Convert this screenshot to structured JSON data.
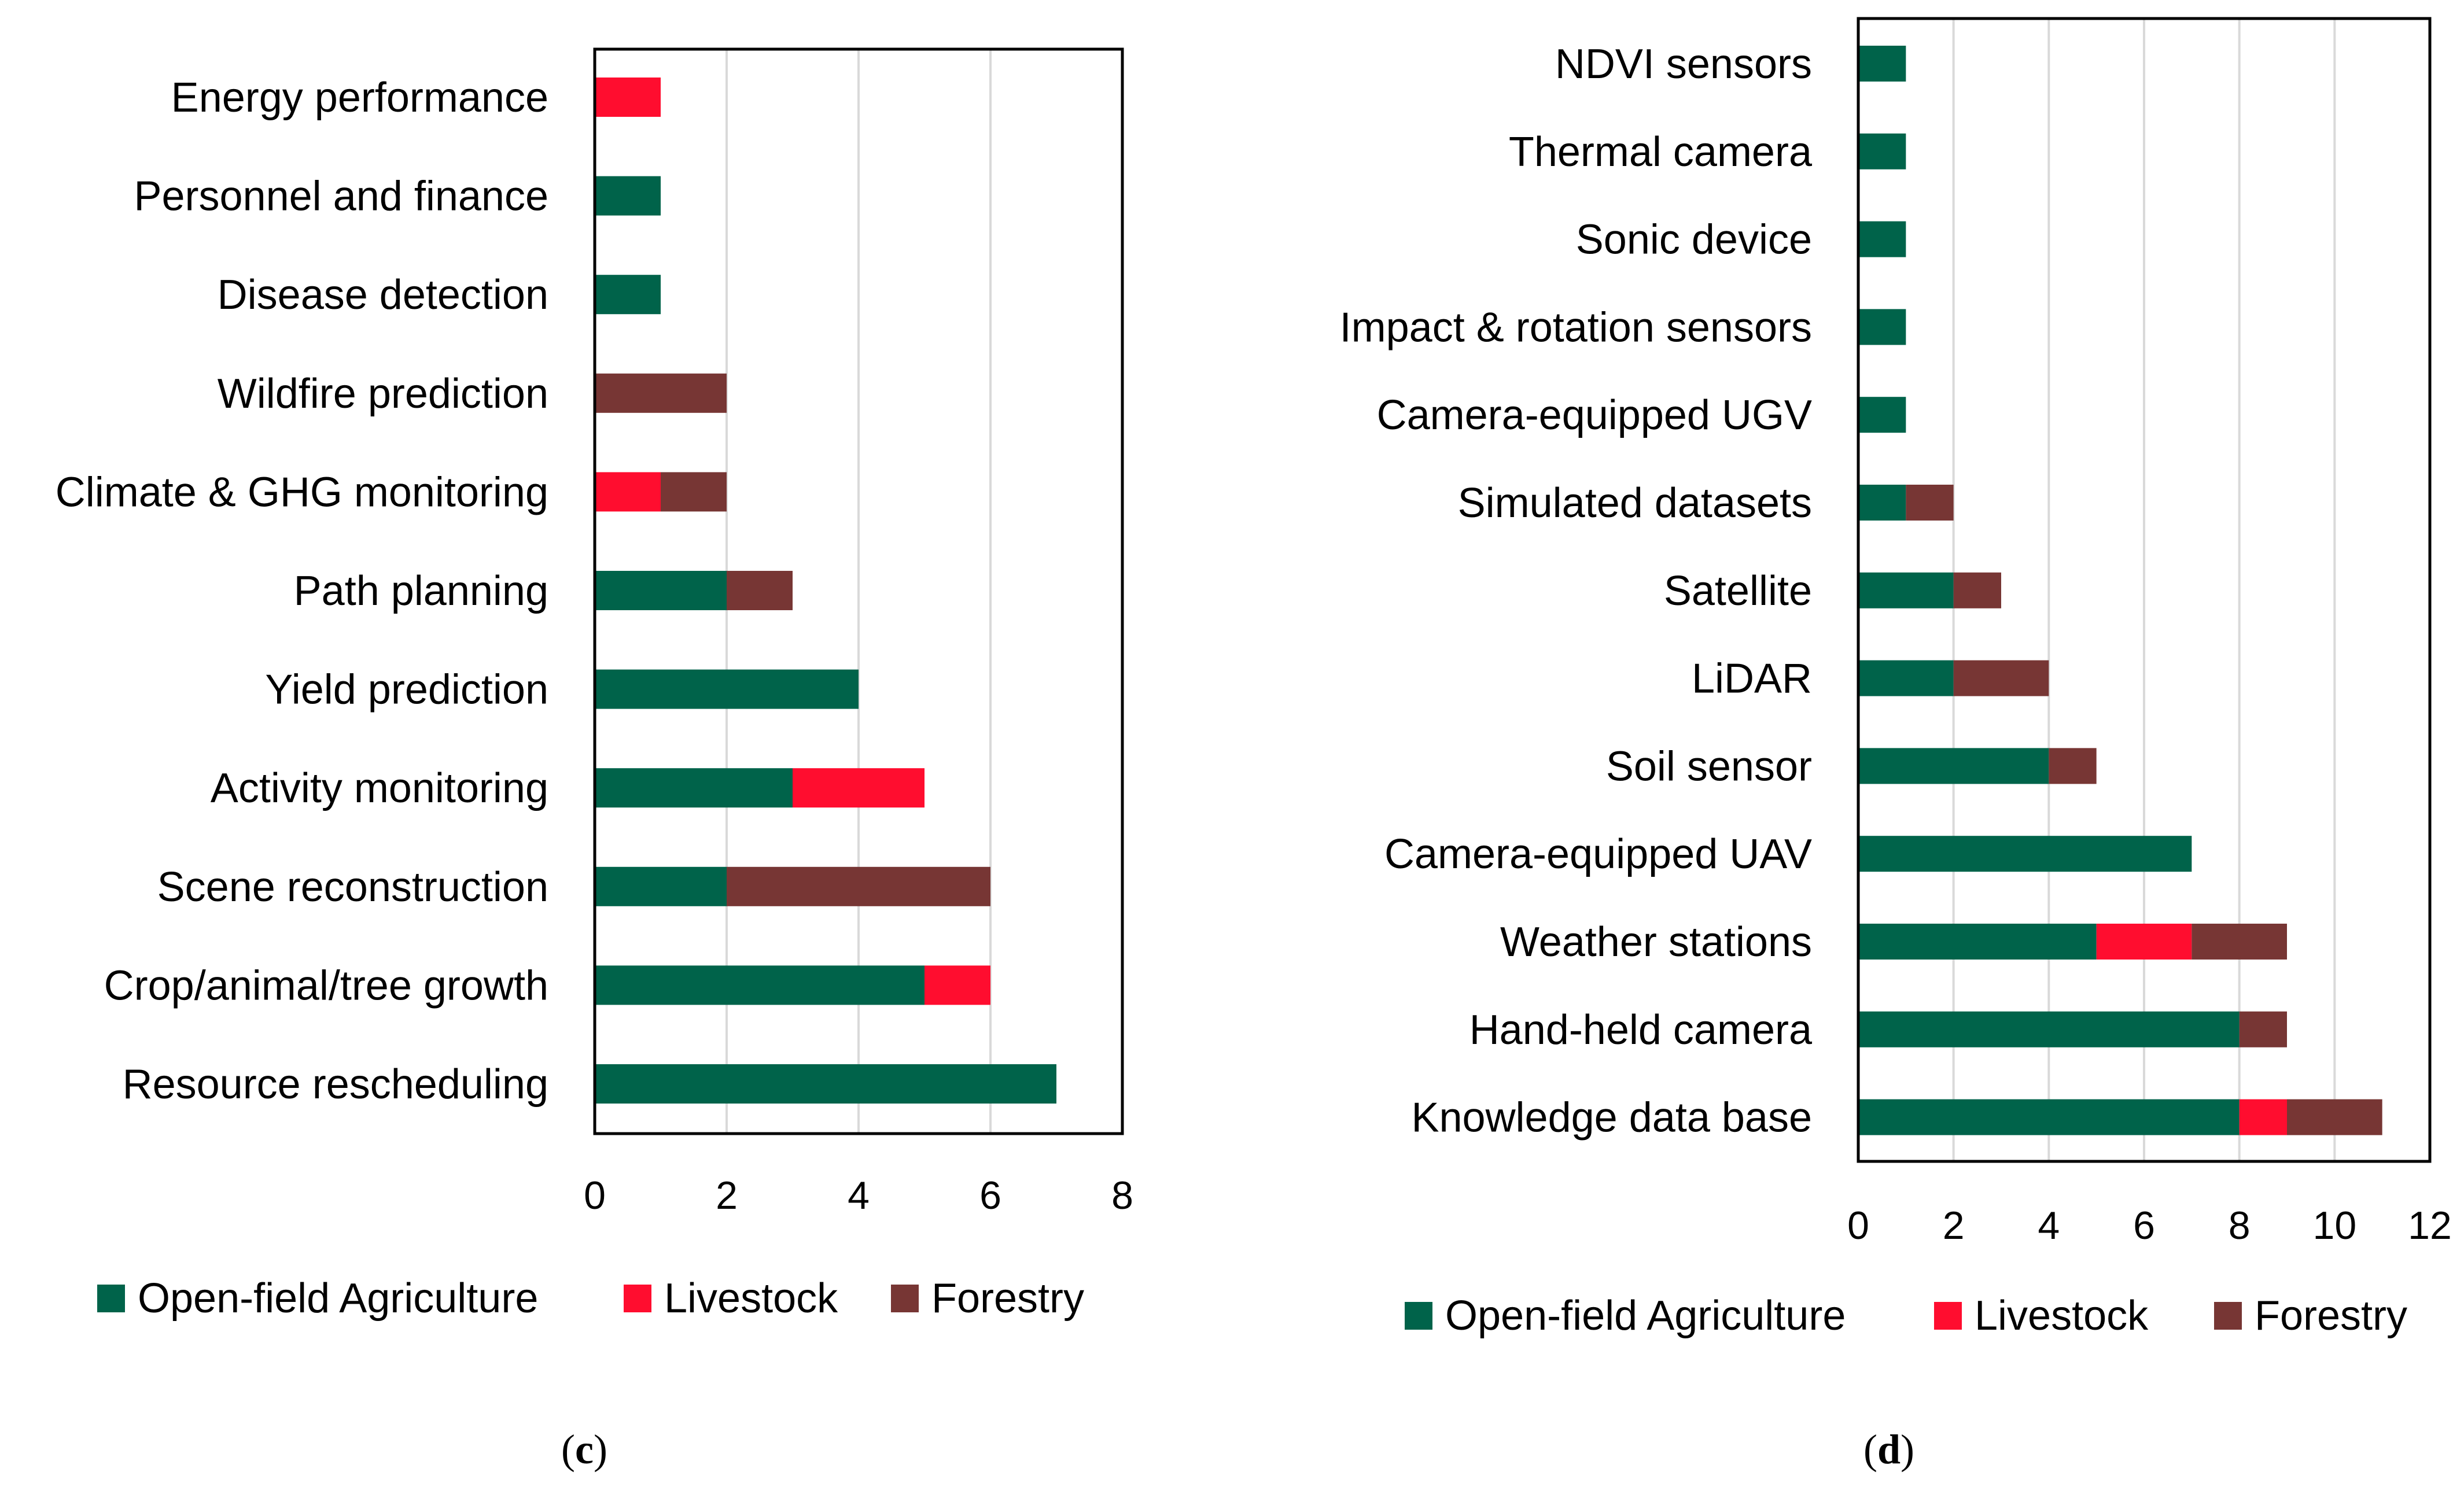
{
  "colors": {
    "Open-field Agriculture": "#00634a",
    "Livestock": "#ff0d2f",
    "Forestry": "#773634"
  },
  "chart_data": [
    {
      "type": "bar",
      "orientation": "horizontal",
      "stacked": true,
      "panel": "c",
      "categories": [
        "Energy performance",
        "Personnel and finance",
        "Disease detection",
        "Wildfire prediction",
        "Climate & GHG monitoring",
        "Path planning",
        "Yield prediction",
        "Activity monitoring",
        "Scene reconstruction",
        "Crop/animal/tree growth",
        "Resource rescheduling"
      ],
      "series": [
        {
          "name": "Open-field Agriculture",
          "values": [
            0,
            1,
            1,
            0,
            0,
            2,
            4,
            3,
            2,
            5,
            7
          ]
        },
        {
          "name": "Livestock",
          "values": [
            1,
            0,
            0,
            0,
            1,
            0,
            0,
            2,
            0,
            1,
            0
          ]
        },
        {
          "name": "Forestry",
          "values": [
            0,
            0,
            0,
            2,
            1,
            1,
            0,
            0,
            4,
            0,
            0
          ]
        }
      ],
      "xlim": [
        0,
        8
      ],
      "xticks": [
        "0",
        "2",
        "4",
        "6",
        "8"
      ],
      "grid": "vertical",
      "legend": "bottom",
      "legend_entries": [
        "Open-field Agriculture",
        "Livestock",
        "Forestry"
      ]
    },
    {
      "type": "bar",
      "orientation": "horizontal",
      "stacked": true,
      "panel": "d",
      "categories": [
        "NDVI sensors",
        "Thermal camera",
        "Sonic device",
        "Impact & rotation sensors",
        "Camera-equipped UGV",
        "Simulated datasets",
        "Satellite",
        "LiDAR",
        "Soil sensor",
        "Camera-equipped UAV",
        "Weather stations",
        "Hand-held camera",
        "Knowledge data base"
      ],
      "series": [
        {
          "name": "Open-field Agriculture",
          "values": [
            1,
            1,
            1,
            1,
            1,
            1,
            2,
            2,
            4,
            7,
            5,
            8,
            8
          ]
        },
        {
          "name": "Livestock",
          "values": [
            0,
            0,
            0,
            0,
            0,
            0,
            0,
            0,
            0,
            0,
            2,
            0,
            1
          ]
        },
        {
          "name": "Forestry",
          "values": [
            0,
            0,
            0,
            0,
            0,
            1,
            1,
            2,
            1,
            0,
            2,
            1,
            2
          ]
        }
      ],
      "xlim": [
        0,
        12
      ],
      "xticks": [
        "0",
        "2",
        "4",
        "6",
        "8",
        "10",
        "12"
      ],
      "grid": "vertical",
      "legend": "bottom",
      "legend_entries": [
        "Open-field Agriculture",
        "Livestock",
        "Forestry"
      ]
    }
  ],
  "panel_labels": {
    "c": {
      "open": "(",
      "letter": "c",
      "close": ")"
    },
    "d": {
      "open": "(",
      "letter": "d",
      "close": ")"
    }
  }
}
